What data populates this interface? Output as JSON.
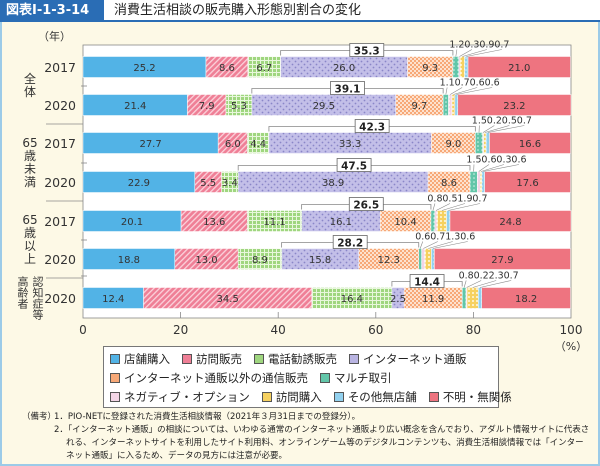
{
  "header": {
    "figure_no": "図表Ⅰ-1-3-14",
    "title": "消費生活相談の販売購入形態別割合の変化"
  },
  "chart_data": {
    "type": "bar",
    "orientation": "horizontal",
    "stacked": true,
    "y_unit_label": "（年）",
    "x_unit_label": "（%）",
    "xlim": [
      0,
      100
    ],
    "x_ticks": [
      "0",
      "20",
      "40",
      "60",
      "80",
      "100"
    ],
    "groups": [
      {
        "label": "全体",
        "rows": [
          "2017",
          "2020"
        ]
      },
      {
        "label": "65歳未満",
        "rows": [
          "2017",
          "2020"
        ]
      },
      {
        "label": "65歳以上",
        "rows": [
          "2017",
          "2020"
        ]
      },
      {
        "label": "認知症等高齢者",
        "rows": [
          "2020"
        ]
      }
    ],
    "series": [
      {
        "name": "店舗購入",
        "color": "#52b3e6"
      },
      {
        "name": "訪問販売",
        "color": "#ef7f96"
      },
      {
        "name": "電話勧誘販売",
        "color": "#9fd67f"
      },
      {
        "name": "インターネット通販",
        "color": "#b9b4e2"
      },
      {
        "name": "インターネット通販以外の通信販売",
        "color": "#f7a877"
      },
      {
        "name": "マルチ取引",
        "color": "#62c6a9"
      },
      {
        "name": "ネガティブ・オプション",
        "color": "#f3d5e6"
      },
      {
        "name": "訪問購入",
        "color": "#f6d160"
      },
      {
        "name": "その他無店舗",
        "color": "#92d1ef"
      },
      {
        "name": "不明・無関係",
        "color": "#ee7480"
      }
    ],
    "rows": [
      {
        "group": "全体",
        "year": "2017",
        "values": [
          25.2,
          8.6,
          6.7,
          26.0,
          9.3,
          1.2,
          0.3,
          0.9,
          0.7,
          21.0
        ],
        "bracket_total": "35.3"
      },
      {
        "group": "全体",
        "year": "2020",
        "values": [
          21.4,
          7.9,
          5.3,
          29.5,
          9.7,
          1.1,
          0.7,
          0.6,
          0.6,
          23.2
        ],
        "bracket_total": "39.1"
      },
      {
        "group": "65歳未満",
        "year": "2017",
        "values": [
          27.7,
          6.0,
          4.4,
          33.3,
          9.0,
          1.5,
          0.2,
          0.5,
          0.7,
          16.6
        ],
        "bracket_total": "42.3"
      },
      {
        "group": "65歳未満",
        "year": "2020",
        "values": [
          22.9,
          5.5,
          3.4,
          38.9,
          8.6,
          1.5,
          0.6,
          0.3,
          0.6,
          17.6
        ],
        "bracket_total": "47.5"
      },
      {
        "group": "65歳以上",
        "year": "2017",
        "values": [
          20.1,
          13.6,
          11.1,
          16.1,
          10.4,
          0.8,
          0.5,
          1.9,
          0.7,
          24.8
        ],
        "bracket_total": "26.5"
      },
      {
        "group": "65歳以上",
        "year": "2020",
        "values": [
          18.8,
          13.0,
          8.9,
          15.8,
          12.3,
          0.6,
          0.7,
          1.3,
          0.6,
          27.9
        ],
        "bracket_total": "28.2"
      },
      {
        "group": "認知症等高齢者",
        "year": "2020",
        "values": [
          12.4,
          34.5,
          16.4,
          2.5,
          11.9,
          0.8,
          0.2,
          2.3,
          0.7,
          18.2
        ],
        "bracket_total": "14.4"
      }
    ],
    "legend_position": "bottom"
  },
  "notes": {
    "label": "（備考）",
    "items": [
      "1．PIO-NETに登録された消費生活相談情報（2021年３月31日までの登録分）。",
      "2．「インターネット通販」の相談については、いわゆる通常のインターネット通販より広い概念を含んでおり、アダルト情報サイトに代表される、インターネットサイトを利用したサイト利用料、オンラインゲーム等のデジタルコンテンツも、消費生活相談情報では「インターネット通販」に入るため、データの見方には注意が必要。"
    ]
  }
}
